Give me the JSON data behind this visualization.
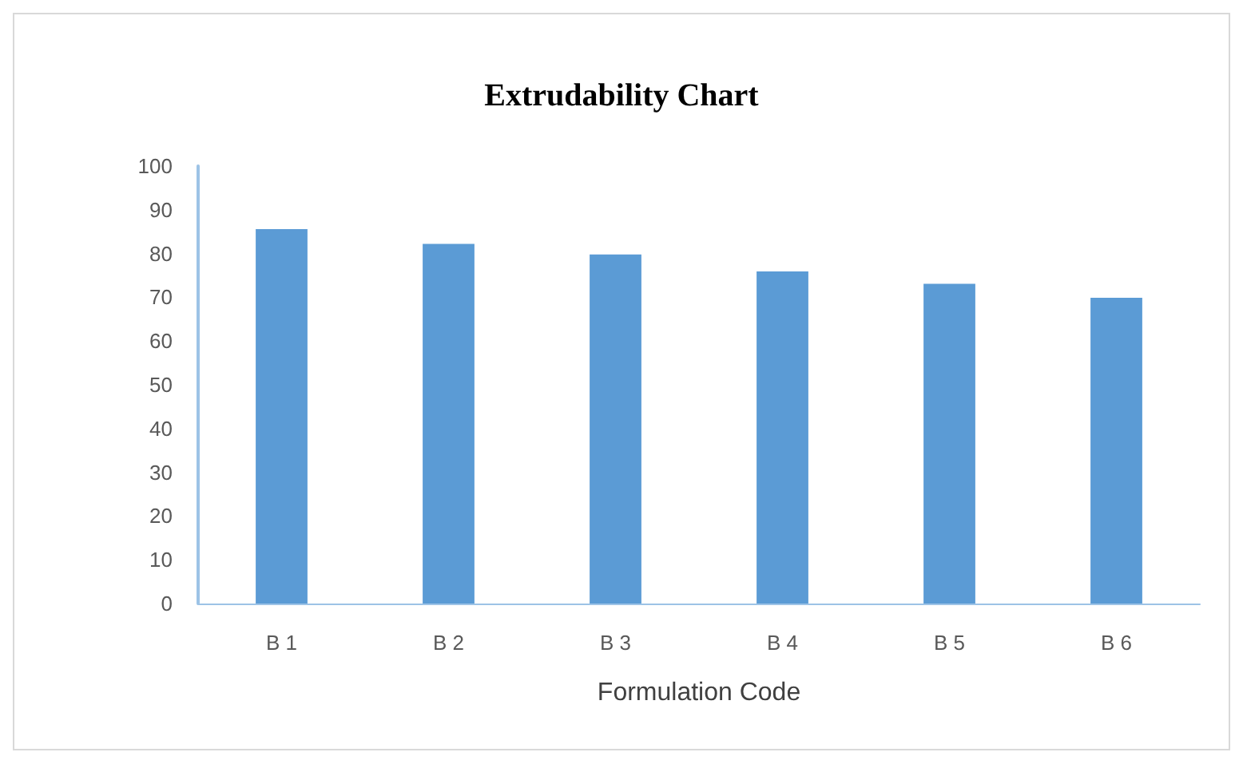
{
  "chart_data": {
    "type": "bar",
    "title": "Extrudability Chart",
    "xlabel": "Formulation Code",
    "categories": [
      "B 1",
      "B 2",
      "B 3",
      "B 4",
      "B 5",
      "B 6"
    ],
    "values": [
      85.6,
      82.2,
      79.8,
      75.9,
      73.1,
      69.9
    ],
    "color": "#5b9bd5",
    "ylim": [
      0,
      100
    ],
    "yticks": [
      0,
      10,
      20,
      30,
      40,
      50,
      60,
      70,
      80,
      90,
      100
    ],
    "grid": false
  }
}
